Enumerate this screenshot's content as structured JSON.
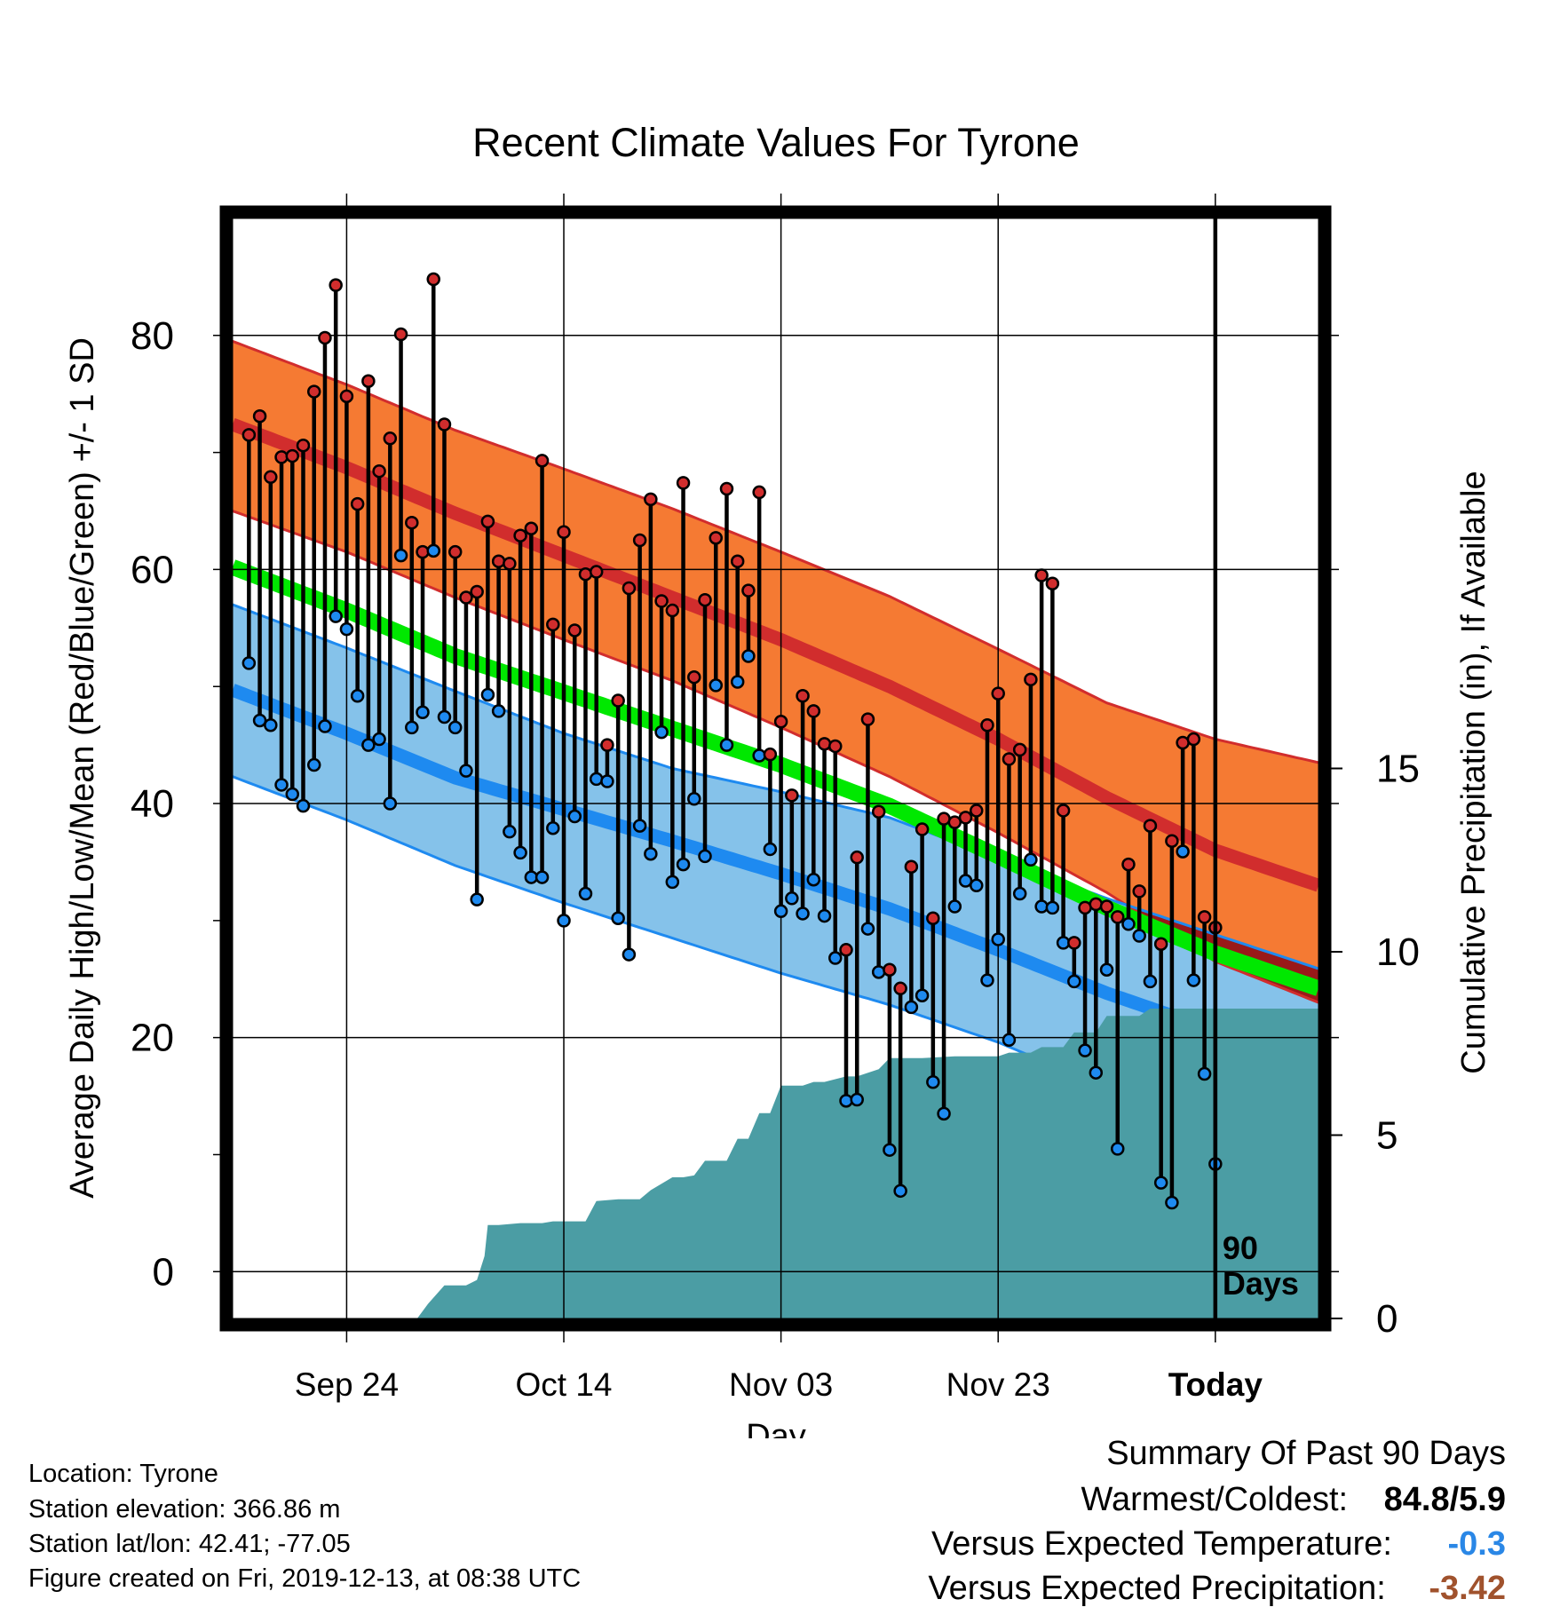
{
  "chart_data": {
    "type": "line",
    "title": "Recent Climate Values For Tyrone",
    "xlabel": "Day",
    "ylabel": "Average Daily High/Low/Mean (Red/Blue/Green) +/- 1 SD",
    "y2label": "Cumulative Precipitation (in), If Available",
    "ylim": [
      -4,
      90
    ],
    "y2lim": [
      0,
      30
    ],
    "xlim": [
      -90.5,
      9.5
    ],
    "grid": true,
    "x_tick_labels": [
      {
        "day": -80,
        "label": "Sep 24"
      },
      {
        "day": -60,
        "label": "Oct 14"
      },
      {
        "day": -40,
        "label": "Nov 03"
      },
      {
        "day": -20,
        "label": "Nov 23"
      },
      {
        "day": 0,
        "label": "Today"
      }
    ],
    "y_tick_labels": [
      "0",
      "20",
      "40",
      "60",
      "80"
    ],
    "y_ticks": [
      0,
      20,
      40,
      60,
      80
    ],
    "y2_tick_labels": [
      "0",
      "5",
      "10",
      "15"
    ],
    "y2_ticks": [
      0,
      5,
      10,
      15
    ],
    "today_marker": {
      "day": 0,
      "label_line1": "90",
      "label_line2": "Days"
    },
    "normals": {
      "days": [
        -90.5,
        -80,
        -70,
        -60,
        -50,
        -40,
        -30,
        -20,
        -10,
        0,
        9.5
      ],
      "high_mean": [
        72.4,
        68.7,
        64.8,
        61.2,
        57.6,
        54.0,
        50.0,
        45.5,
        40.5,
        36.0,
        33.0
      ],
      "high_upper": [
        79.5,
        75.8,
        71.9,
        68.6,
        65.2,
        61.5,
        57.7,
        53.2,
        48.6,
        45.5,
        43.5
      ],
      "high_lower": [
        65.0,
        61.5,
        57.6,
        54.0,
        50.5,
        46.5,
        42.3,
        37.5,
        32.4,
        26.5,
        23.0
      ],
      "low_mean": [
        49.7,
        46.0,
        42.2,
        39.5,
        36.8,
        34.0,
        31.0,
        27.5,
        23.8,
        20.6,
        17.7
      ],
      "low_upper": [
        57.0,
        53.3,
        49.6,
        46.0,
        43.0,
        41.0,
        38.8,
        35.3,
        31.9,
        28.8,
        25.9
      ],
      "low_lower": [
        42.3,
        38.6,
        34.7,
        31.5,
        28.5,
        25.5,
        22.8,
        19.6,
        15.7,
        11.5,
        9.5
      ],
      "mean_mean": [
        60.2,
        56.5,
        52.6,
        49.5,
        46.4,
        43.3,
        39.8,
        35.5,
        31.1,
        27.2,
        24.2
      ]
    },
    "daily_high": [
      71.5,
      73.1,
      67.9,
      69.6,
      69.7,
      70.6,
      75.2,
      79.8,
      84.3,
      74.8,
      65.6,
      76.1,
      68.4,
      71.2,
      80.1,
      64.0,
      61.5,
      84.8,
      72.4,
      61.5,
      57.6,
      58.1,
      64.1,
      60.7,
      60.5,
      62.9,
      63.5,
      69.3,
      55.3,
      63.2,
      54.8,
      59.6,
      59.8,
      45.0,
      48.8,
      58.4,
      62.5,
      66.0,
      57.3,
      56.5,
      67.4,
      50.8,
      57.4,
      62.7,
      66.9,
      60.7,
      58.2,
      66.6,
      44.2,
      47.0,
      40.7,
      49.2,
      47.9,
      45.1,
      44.9,
      27.5,
      35.4,
      47.2,
      39.3,
      25.8,
      24.2,
      34.6,
      37.8,
      30.2,
      38.7,
      38.4,
      38.8,
      39.4,
      46.7,
      49.4,
      43.8,
      44.6,
      50.6,
      59.5,
      58.8,
      39.4,
      28.1,
      31.1,
      31.4,
      31.2,
      30.3,
      34.8,
      32.5,
      38.1,
      28.0,
      36.8,
      45.2,
      45.5,
      30.3,
      29.4
    ],
    "daily_low": [
      52.0,
      47.1,
      46.7,
      41.6,
      40.8,
      39.8,
      43.3,
      46.6,
      56.0,
      54.9,
      49.2,
      45.0,
      45.5,
      40.0,
      61.2,
      46.5,
      47.8,
      61.6,
      47.4,
      46.5,
      42.8,
      31.8,
      49.3,
      47.9,
      37.6,
      35.8,
      33.7,
      33.7,
      37.9,
      30.0,
      38.9,
      32.3,
      42.1,
      41.9,
      30.2,
      27.1,
      38.1,
      35.7,
      46.1,
      33.3,
      34.8,
      40.4,
      35.5,
      50.1,
      45.0,
      50.4,
      52.6,
      44.1,
      36.1,
      30.8,
      31.9,
      30.6,
      33.5,
      30.4,
      26.8,
      14.6,
      14.7,
      29.3,
      25.6,
      10.4,
      6.9,
      22.6,
      23.6,
      16.2,
      13.5,
      31.2,
      33.4,
      33.0,
      24.9,
      28.4,
      19.8,
      32.3,
      35.2,
      31.2,
      31.1,
      28.1,
      24.8,
      18.9,
      17.0,
      25.8,
      10.5,
      29.7,
      28.7,
      24.8,
      7.6,
      5.9,
      35.9,
      24.9,
      16.9,
      9.2
    ],
    "cumulative_precip": {
      "days": [
        -90.5,
        -73.5,
        -72.5,
        -71,
        -69,
        -68,
        -67.3,
        -67,
        -66,
        -64,
        -62,
        -61,
        -60,
        -58,
        -57,
        -55,
        -53,
        -52,
        -50,
        -49,
        -48,
        -47,
        -46,
        -45,
        -44,
        -43,
        -42,
        -41,
        -40,
        -38,
        -37,
        -36,
        -34,
        -33,
        -31,
        -30,
        -29,
        -27,
        -24,
        -20,
        -19,
        -17,
        -16,
        -14,
        -13,
        -11,
        -10,
        -7,
        -6,
        -3,
        0,
        9.5
      ],
      "values": [
        0,
        0,
        0.4,
        0.9,
        0.9,
        1.05,
        1.7,
        2.55,
        2.55,
        2.6,
        2.6,
        2.65,
        2.65,
        2.65,
        3.2,
        3.25,
        3.25,
        3.5,
        3.85,
        3.85,
        3.9,
        4.3,
        4.3,
        4.3,
        4.9,
        4.9,
        5.6,
        5.6,
        6.35,
        6.35,
        6.45,
        6.45,
        6.6,
        6.6,
        6.8,
        7.1,
        7.1,
        7.1,
        7.15,
        7.15,
        7.25,
        7.25,
        7.4,
        7.4,
        7.8,
        7.8,
        8.25,
        8.25,
        8.45,
        8.45,
        8.45,
        8.45
      ]
    },
    "series": [
      {
        "name": "High"
      },
      {
        "name": "Low"
      },
      {
        "name": "Mean"
      }
    ],
    "colors": {
      "high_band": "#f57a33",
      "high_line": "#d12d2d",
      "low_band": "#85c2ea",
      "low_line": "#1e8af0",
      "mean_line": "#00e800",
      "overlap_band": "#991919",
      "precip": "#4b9da4",
      "high_marker": "#d12d2d",
      "low_marker": "#1e8af0"
    }
  },
  "info": {
    "location": "Location: Tyrone",
    "elevation": "Station elevation: 366.86 m",
    "latlon": "Station lat/lon: 42.41; -77.05",
    "created": "Figure created on Fri, 2019-12-13, at 08:38 UTC"
  },
  "summary": {
    "heading": "Summary Of Past 90 Days",
    "warmest_label": "Warmest/Coldest:",
    "warmest_value": "84.8/5.9",
    "temp_label": "Versus Expected Temperature:",
    "temp_value": "-0.3",
    "temp_color": "#2a87e6",
    "precip_label": "Versus Expected Precipitation:",
    "precip_value": "-3.42",
    "precip_color": "#a0522d"
  }
}
